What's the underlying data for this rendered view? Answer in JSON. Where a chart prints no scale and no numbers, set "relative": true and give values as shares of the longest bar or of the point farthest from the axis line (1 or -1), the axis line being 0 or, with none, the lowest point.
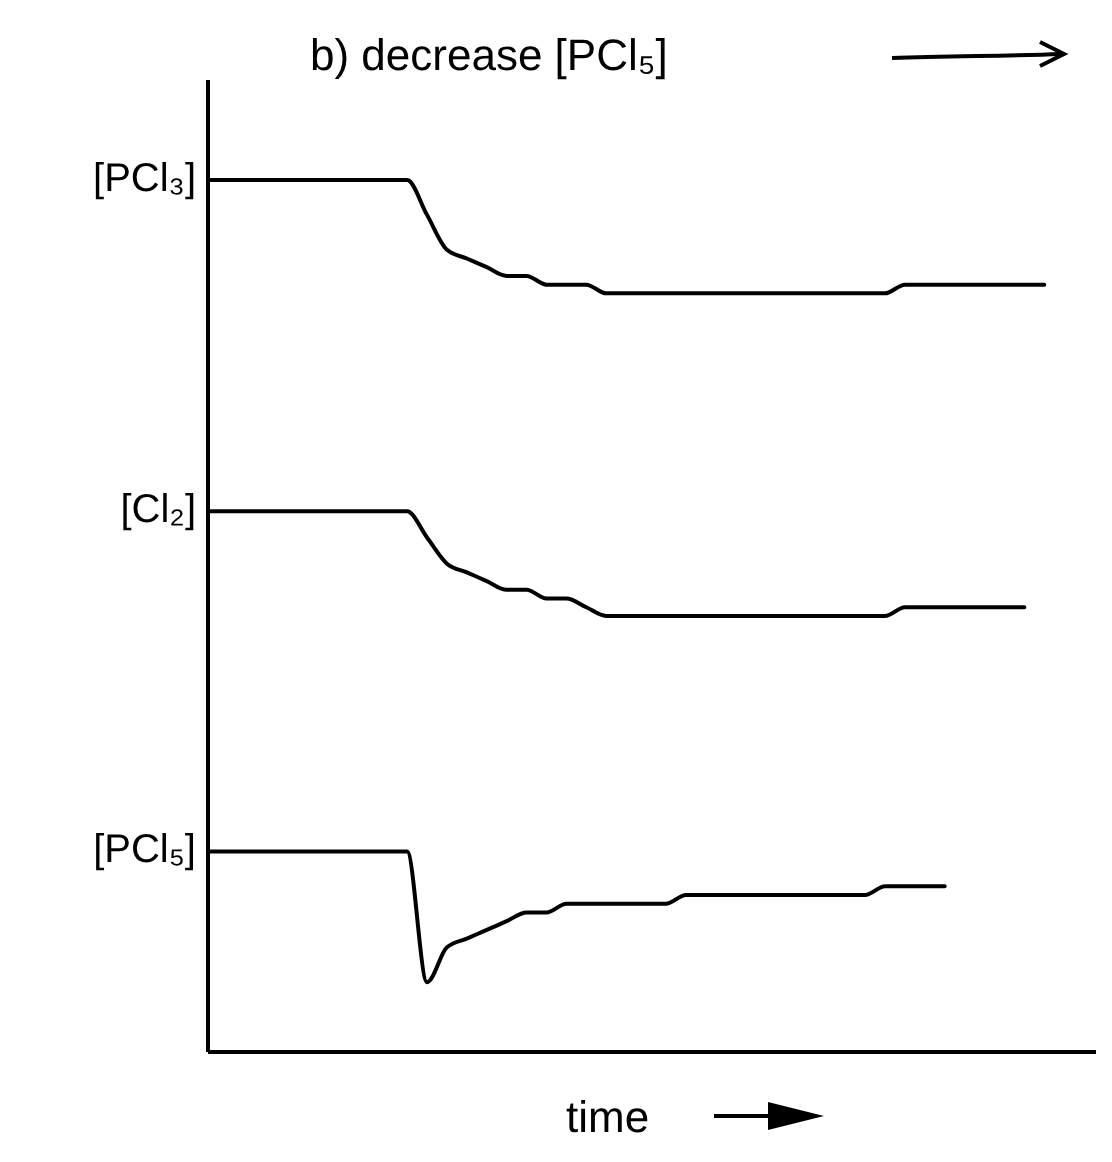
{
  "chart_data": {
    "type": "line",
    "title": "b) decrease [PCl₅]",
    "xlabel": "time",
    "relative": true,
    "marker": "none",
    "line_style": "solid",
    "categories": [
      null,
      null,
      null,
      null,
      null,
      null,
      null,
      null,
      null,
      null,
      null,
      null,
      null,
      null,
      null,
      null,
      null,
      null,
      null,
      null,
      null,
      null,
      null,
      null,
      null,
      null,
      null,
      null,
      null,
      null,
      null,
      null,
      null,
      null,
      null,
      null,
      null,
      null,
      null,
      null,
      null,
      null,
      null,
      null,
      null,
      null
    ],
    "series": [
      {
        "name": "[PCl₃]",
        "color": "#000000",
        "values": [
          1,
          1,
          1,
          1,
          1,
          1,
          1,
          1,
          1,
          1,
          1,
          0.96,
          0.92,
          0.91,
          0.9,
          0.89,
          0.89,
          0.88,
          0.88,
          0.88,
          0.87,
          0.87,
          0.87,
          0.87,
          0.87,
          0.87,
          0.87,
          0.87,
          0.87,
          0.87,
          0.87,
          0.87,
          0.87,
          0.87,
          0.87,
          0.88,
          0.88,
          0.88,
          0.88,
          0.88,
          0.88,
          0.88,
          0.88,
          null,
          null,
          null
        ]
      },
      {
        "name": "[Cl₂]",
        "color": "#000000",
        "values": [
          0.62,
          0.62,
          0.62,
          0.62,
          0.62,
          0.62,
          0.62,
          0.62,
          0.62,
          0.62,
          0.62,
          0.59,
          0.56,
          0.55,
          0.54,
          0.53,
          0.53,
          0.52,
          0.52,
          0.51,
          0.5,
          0.5,
          0.5,
          0.5,
          0.5,
          0.5,
          0.5,
          0.5,
          0.5,
          0.5,
          0.5,
          0.5,
          0.5,
          0.5,
          0.5,
          0.51,
          0.51,
          0.51,
          0.51,
          0.51,
          0.51,
          0.51,
          null,
          null,
          null,
          null
        ]
      },
      {
        "name": "[PCl₅]",
        "color": "#000000",
        "values": [
          0.23,
          0.23,
          0.23,
          0.23,
          0.23,
          0.23,
          0.23,
          0.23,
          0.23,
          0.23,
          0.23,
          0.08,
          0.12,
          0.13,
          0.14,
          0.15,
          0.16,
          0.16,
          0.17,
          0.17,
          0.17,
          0.17,
          0.17,
          0.17,
          0.18,
          0.18,
          0.18,
          0.18,
          0.18,
          0.18,
          0.18,
          0.18,
          0.18,
          0.18,
          0.19,
          0.19,
          0.19,
          0.19,
          null,
          null,
          null,
          null,
          null,
          null,
          null,
          null
        ]
      }
    ]
  }
}
